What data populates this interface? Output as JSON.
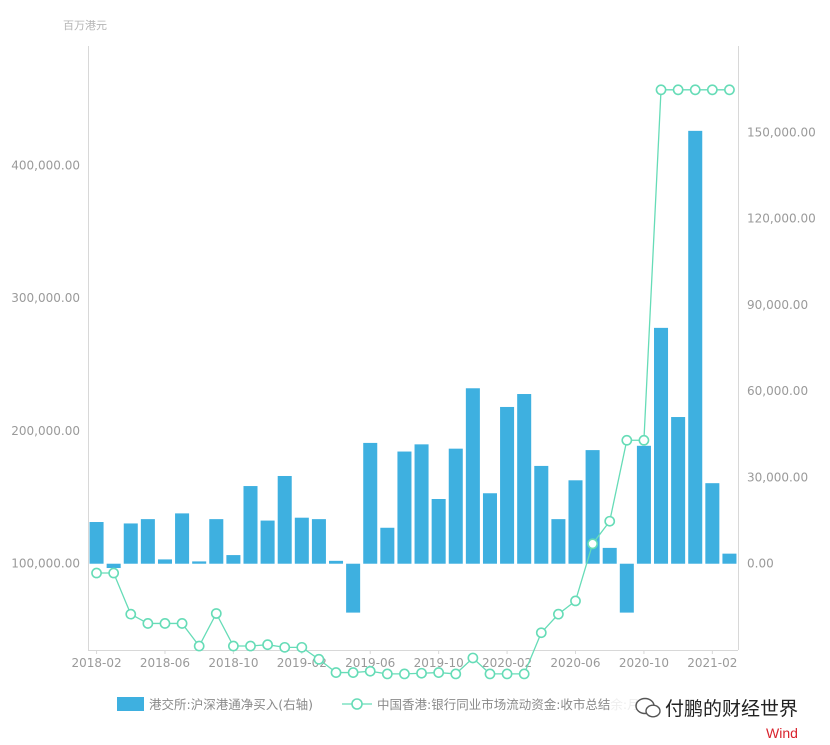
{
  "chart_data": {
    "type": "bar+line",
    "left_axis_unit": "百万港元",
    "left_axis": {
      "min": 35000,
      "max": 490000,
      "ticks": [
        100000,
        200000,
        300000,
        400000
      ],
      "tick_labels": [
        "100,000.00",
        "200,000.00",
        "300,000.00",
        "400,000.00"
      ]
    },
    "right_axis": {
      "min": -30000,
      "max": 180000,
      "ticks": [
        0,
        30000,
        60000,
        90000,
        120000,
        150000
      ],
      "tick_labels": [
        "0.00",
        "30,000.00",
        "60,000.00",
        "90,000.00",
        "120,000.00",
        "150,000.00"
      ]
    },
    "x_tick_labels": [
      "2018-02",
      "2018-06",
      "2018-10",
      "2019-02",
      "2019-06",
      "2019-10",
      "2020-02",
      "2020-06",
      "2020-10",
      "2021-02"
    ],
    "x_tick_every": 4,
    "periods": [
      "2018-02",
      "2018-03",
      "2018-04",
      "2018-05",
      "2018-06",
      "2018-07",
      "2018-08",
      "2018-09",
      "2018-10",
      "2018-11",
      "2018-12",
      "2019-01",
      "2019-02",
      "2019-03",
      "2019-04",
      "2019-05",
      "2019-06",
      "2019-07",
      "2019-08",
      "2019-09",
      "2019-10",
      "2019-11",
      "2019-12",
      "2020-01",
      "2020-02",
      "2020-03",
      "2020-04",
      "2020-05",
      "2020-06",
      "2020-07",
      "2020-08",
      "2020-09",
      "2020-10",
      "2020-11",
      "2020-12",
      "2021-01",
      "2021-02",
      "2021-03"
    ],
    "series": [
      {
        "name": "港交所:沪深港通净买入(右轴)",
        "type": "bar",
        "axis": "right",
        "color": "#3eb0e0",
        "values": [
          14500,
          -1500,
          14000,
          15500,
          1500,
          17500,
          800,
          15500,
          3000,
          27000,
          15000,
          30500,
          16000,
          15500,
          1000,
          -17000,
          42000,
          12500,
          39000,
          41500,
          22500,
          40000,
          61000,
          24500,
          54500,
          59000,
          34000,
          15500,
          29000,
          39500,
          5500,
          -17000,
          41000,
          82000,
          51000,
          150500,
          28000,
          3500
        ]
      },
      {
        "name": "中国香港:银行同业市场流动资金:收市总结余:月",
        "type": "line",
        "axis": "left",
        "color": "#66dcb7",
        "values": [
          93000,
          93000,
          62000,
          55000,
          55000,
          55000,
          38000,
          62500,
          38000,
          38000,
          39000,
          37000,
          37000,
          28000,
          18000,
          18000,
          19000,
          17000,
          17000,
          17500,
          18000,
          17000,
          29000,
          17000,
          17000,
          17000,
          48000,
          62000,
          72000,
          115000,
          132000,
          193000,
          193000,
          457000,
          457000,
          457000,
          457000,
          457000
        ]
      }
    ],
    "grid": false,
    "legend_position": "bottom"
  },
  "watermark": {
    "icon": "wechat-icon",
    "text": "付鹏的财经世界",
    "source": "Wind"
  }
}
